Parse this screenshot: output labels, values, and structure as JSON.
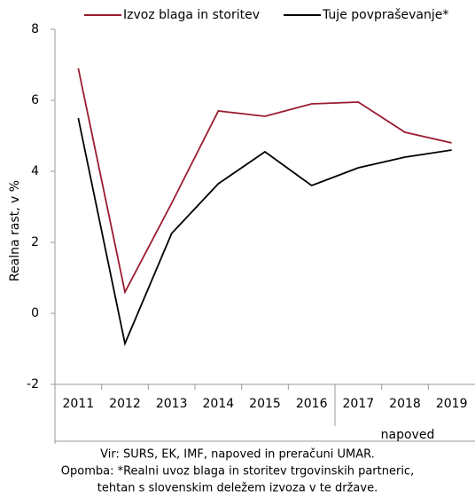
{
  "chart_data": {
    "type": "line",
    "y_label": "Realna rast, v %",
    "categories": [
      "2011",
      "2012",
      "2013",
      "2014",
      "2015",
      "2016",
      "2017",
      "2018",
      "2019"
    ],
    "series": [
      {
        "name": "Izvoz blaga in storitev",
        "color": "#9b1b30",
        "values": [
          6.9,
          0.6,
          3.1,
          5.7,
          5.55,
          5.9,
          5.95,
          5.1,
          4.8
        ]
      },
      {
        "name": "Tuje povpraševanje*",
        "color": "#000000",
        "values": [
          5.5,
          -0.85,
          2.25,
          3.65,
          4.55,
          3.6,
          4.1,
          4.4,
          4.6
        ]
      }
    ],
    "ylim": [
      -2,
      8
    ],
    "yticks": [
      -2,
      0,
      2,
      4,
      6,
      8
    ],
    "grid": false,
    "legend": "top",
    "forecast_label": "napoved",
    "notes": [
      "Vir: SURS, EK, IMF, napoved in preračuni UMAR.",
      "Opomba: *Realni uvoz blaga in storitev trgovinskih partneric,",
      "tehtan s slovenskim deležem izvoza v te države."
    ]
  }
}
